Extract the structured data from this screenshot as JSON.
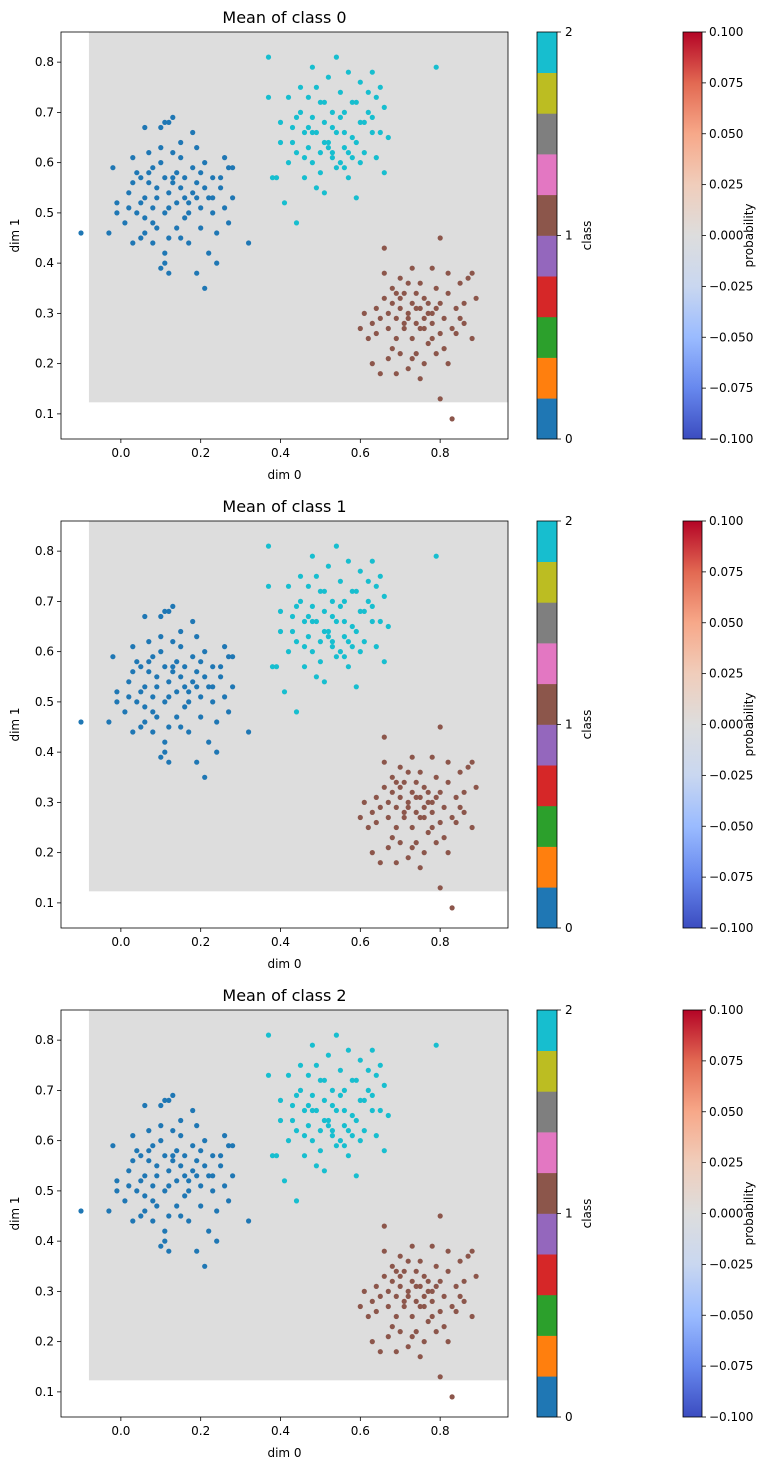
{
  "chart_data": {
    "type": "scatter",
    "panels": [
      {
        "title": "Mean of class 0"
      },
      {
        "title": "Mean of class 1"
      },
      {
        "title": "Mean of class 2"
      }
    ],
    "xlabel": "dim 0",
    "ylabel": "dim 1",
    "xlim": [
      -0.15,
      0.97
    ],
    "ylim": [
      0.05,
      0.86
    ],
    "xticks": [
      0.0,
      0.2,
      0.4,
      0.6,
      0.8
    ],
    "xtick_labels": [
      "0.0",
      "0.2",
      "0.4",
      "0.6",
      "0.8"
    ],
    "yticks": [
      0.1,
      0.2,
      0.3,
      0.4,
      0.5,
      0.6,
      0.7,
      0.8
    ],
    "ytick_labels": [
      "0.1",
      "0.2",
      "0.3",
      "0.4",
      "0.5",
      "0.6",
      "0.7",
      "0.8"
    ],
    "background_region": {
      "x": [
        -0.08,
        0.97
      ],
      "y": [
        0.123,
        0.86
      ],
      "value": 0.0,
      "color": "#dddddd"
    },
    "class_colorbar": {
      "label": "class",
      "ticks": [
        0,
        1,
        2
      ],
      "tick_labels": [
        "0",
        "1",
        "2"
      ],
      "segment_colors": [
        "#1f77b4",
        "#ff7f0e",
        "#2ca02c",
        "#d62728",
        "#9467bd",
        "#8c564b",
        "#e377c2",
        "#7f7f7f",
        "#bcbd22",
        "#17becf"
      ]
    },
    "prob_colorbar": {
      "label": "probability",
      "min": -0.1,
      "max": 0.1,
      "ticks": [
        -0.1,
        -0.075,
        -0.05,
        -0.025,
        0.0,
        0.025,
        0.05,
        0.075,
        0.1
      ],
      "tick_labels": [
        "−0.100",
        "−0.075",
        "−0.050",
        "−0.025",
        "0.000",
        "0.025",
        "0.050",
        "0.075",
        "0.100"
      ],
      "colors": [
        "#3b4cc0",
        "#6788ee",
        "#9abbff",
        "#c9d7f0",
        "#dddddd",
        "#f0cdbb",
        "#f7a889",
        "#e26952",
        "#b40426"
      ]
    },
    "series": [
      {
        "name": "class 0",
        "class": 0,
        "color": "#1f77b4",
        "points": [
          [
            -0.1,
            0.46
          ],
          [
            -0.03,
            0.46
          ],
          [
            -0.02,
            0.59
          ],
          [
            -0.01,
            0.52
          ],
          [
            -0.01,
            0.5
          ],
          [
            0.01,
            0.48
          ],
          [
            0.02,
            0.54
          ],
          [
            0.03,
            0.61
          ],
          [
            0.03,
            0.56
          ],
          [
            0.04,
            0.5
          ],
          [
            0.05,
            0.52
          ],
          [
            0.05,
            0.45
          ],
          [
            0.05,
            0.57
          ],
          [
            0.06,
            0.46
          ],
          [
            0.06,
            0.49
          ],
          [
            0.06,
            0.53
          ],
          [
            0.07,
            0.56
          ],
          [
            0.07,
            0.62
          ],
          [
            0.07,
            0.58
          ],
          [
            0.08,
            0.51
          ],
          [
            0.08,
            0.48
          ],
          [
            0.09,
            0.55
          ],
          [
            0.09,
            0.53
          ],
          [
            0.1,
            0.6
          ],
          [
            0.1,
            0.63
          ],
          [
            0.1,
            0.67
          ],
          [
            0.11,
            0.68
          ],
          [
            0.11,
            0.57
          ],
          [
            0.11,
            0.5
          ],
          [
            0.12,
            0.45
          ],
          [
            0.12,
            0.54
          ],
          [
            0.12,
            0.68
          ],
          [
            0.13,
            0.69
          ],
          [
            0.13,
            0.62
          ],
          [
            0.13,
            0.56
          ],
          [
            0.14,
            0.52
          ],
          [
            0.14,
            0.47
          ],
          [
            0.15,
            0.55
          ],
          [
            0.15,
            0.61
          ],
          [
            0.15,
            0.64
          ],
          [
            0.16,
            0.57
          ],
          [
            0.16,
            0.53
          ],
          [
            0.17,
            0.5
          ],
          [
            0.17,
            0.44
          ],
          [
            0.18,
            0.54
          ],
          [
            0.18,
            0.59
          ],
          [
            0.19,
            0.63
          ],
          [
            0.19,
            0.56
          ],
          [
            0.2,
            0.51
          ],
          [
            0.2,
            0.47
          ],
          [
            0.21,
            0.55
          ],
          [
            0.21,
            0.6
          ],
          [
            0.22,
            0.53
          ],
          [
            0.22,
            0.42
          ],
          [
            0.23,
            0.57
          ],
          [
            0.23,
            0.5
          ],
          [
            0.24,
            0.46
          ],
          [
            0.25,
            0.55
          ],
          [
            0.26,
            0.61
          ],
          [
            0.27,
            0.48
          ],
          [
            0.27,
            0.59
          ],
          [
            0.28,
            0.53
          ],
          [
            0.28,
            0.59
          ],
          [
            0.32,
            0.44
          ],
          [
            0.1,
            0.39
          ],
          [
            0.11,
            0.4
          ],
          [
            0.12,
            0.38
          ],
          [
            0.19,
            0.38
          ],
          [
            0.21,
            0.35
          ],
          [
            0.08,
            0.44
          ],
          [
            0.09,
            0.47
          ],
          [
            0.14,
            0.58
          ],
          [
            0.17,
            0.52
          ],
          [
            0.06,
            0.67
          ],
          [
            0.02,
            0.51
          ],
          [
            0.18,
            0.66
          ],
          [
            0.25,
            0.57
          ],
          [
            0.13,
            0.57
          ],
          [
            0.23,
            0.53
          ],
          [
            0.11,
            0.42
          ],
          [
            0.16,
            0.49
          ],
          [
            0.04,
            0.58
          ],
          [
            0.24,
            0.4
          ],
          [
            0.03,
            0.44
          ],
          [
            0.19,
            0.53
          ],
          [
            0.15,
            0.45
          ],
          [
            0.26,
            0.51
          ],
          [
            0.08,
            0.59
          ],
          [
            0.12,
            0.51
          ],
          [
            0.2,
            0.58
          ]
        ]
      },
      {
        "name": "class 1",
        "class": 1,
        "color": "#8c564b",
        "points": [
          [
            0.63,
            0.2
          ],
          [
            0.64,
            0.31
          ],
          [
            0.65,
            0.18
          ],
          [
            0.65,
            0.29
          ],
          [
            0.66,
            0.43
          ],
          [
            0.66,
            0.38
          ],
          [
            0.67,
            0.27
          ],
          [
            0.67,
            0.21
          ],
          [
            0.68,
            0.35
          ],
          [
            0.68,
            0.32
          ],
          [
            0.69,
            0.25
          ],
          [
            0.69,
            0.29
          ],
          [
            0.7,
            0.37
          ],
          [
            0.7,
            0.22
          ],
          [
            0.7,
            0.31
          ],
          [
            0.71,
            0.27
          ],
          [
            0.71,
            0.34
          ],
          [
            0.72,
            0.19
          ],
          [
            0.72,
            0.29
          ],
          [
            0.73,
            0.25
          ],
          [
            0.73,
            0.32
          ],
          [
            0.73,
            0.39
          ],
          [
            0.74,
            0.28
          ],
          [
            0.74,
            0.22
          ],
          [
            0.75,
            0.36
          ],
          [
            0.75,
            0.31
          ],
          [
            0.75,
            0.17
          ],
          [
            0.76,
            0.27
          ],
          [
            0.76,
            0.33
          ],
          [
            0.77,
            0.24
          ],
          [
            0.77,
            0.3
          ],
          [
            0.78,
            0.39
          ],
          [
            0.78,
            0.28
          ],
          [
            0.79,
            0.35
          ],
          [
            0.79,
            0.22
          ],
          [
            0.8,
            0.32
          ],
          [
            0.8,
            0.26
          ],
          [
            0.8,
            0.45
          ],
          [
            0.81,
            0.29
          ],
          [
            0.82,
            0.34
          ],
          [
            0.82,
            0.2
          ],
          [
            0.83,
            0.27
          ],
          [
            0.84,
            0.31
          ],
          [
            0.85,
            0.36
          ],
          [
            0.86,
            0.28
          ],
          [
            0.87,
            0.37
          ],
          [
            0.88,
            0.25
          ],
          [
            0.89,
            0.33
          ],
          [
            0.8,
            0.13
          ],
          [
            0.83,
            0.09
          ],
          [
            0.6,
            0.27
          ],
          [
            0.61,
            0.3
          ],
          [
            0.62,
            0.25
          ],
          [
            0.64,
            0.26
          ],
          [
            0.69,
            0.18
          ],
          [
            0.72,
            0.3
          ],
          [
            0.74,
            0.31
          ],
          [
            0.76,
            0.29
          ],
          [
            0.78,
            0.3
          ],
          [
            0.71,
            0.28
          ],
          [
            0.75,
            0.27
          ],
          [
            0.68,
            0.23
          ],
          [
            0.73,
            0.21
          ],
          [
            0.77,
            0.32
          ],
          [
            0.7,
            0.33
          ],
          [
            0.79,
            0.31
          ],
          [
            0.81,
            0.23
          ],
          [
            0.84,
            0.26
          ],
          [
            0.86,
            0.32
          ],
          [
            0.66,
            0.33
          ],
          [
            0.72,
            0.36
          ],
          [
            0.78,
            0.25
          ],
          [
            0.74,
            0.34
          ],
          [
            0.67,
            0.3
          ],
          [
            0.82,
            0.38
          ],
          [
            0.88,
            0.38
          ],
          [
            0.63,
            0.28
          ],
          [
            0.76,
            0.2
          ],
          [
            0.85,
            0.29
          ],
          [
            0.69,
            0.34
          ]
        ]
      },
      {
        "name": "class 2",
        "class": 2,
        "color": "#17becf",
        "points": [
          [
            0.37,
            0.73
          ],
          [
            0.37,
            0.81
          ],
          [
            0.39,
            0.57
          ],
          [
            0.4,
            0.64
          ],
          [
            0.4,
            0.68
          ],
          [
            0.41,
            0.52
          ],
          [
            0.42,
            0.6
          ],
          [
            0.43,
            0.67
          ],
          [
            0.44,
            0.48
          ],
          [
            0.44,
            0.62
          ],
          [
            0.45,
            0.7
          ],
          [
            0.45,
            0.75
          ],
          [
            0.46,
            0.57
          ],
          [
            0.46,
            0.66
          ],
          [
            0.47,
            0.73
          ],
          [
            0.47,
            0.63
          ],
          [
            0.48,
            0.69
          ],
          [
            0.48,
            0.6
          ],
          [
            0.49,
            0.75
          ],
          [
            0.49,
            0.66
          ],
          [
            0.5,
            0.72
          ],
          [
            0.5,
            0.62
          ],
          [
            0.51,
            0.54
          ],
          [
            0.51,
            0.68
          ],
          [
            0.52,
            0.64
          ],
          [
            0.52,
            0.77
          ],
          [
            0.53,
            0.61
          ],
          [
            0.53,
            0.7
          ],
          [
            0.54,
            0.81
          ],
          [
            0.54,
            0.66
          ],
          [
            0.55,
            0.6
          ],
          [
            0.55,
            0.74
          ],
          [
            0.56,
            0.63
          ],
          [
            0.56,
            0.7
          ],
          [
            0.57,
            0.57
          ],
          [
            0.57,
            0.78
          ],
          [
            0.58,
            0.65
          ],
          [
            0.58,
            0.61
          ],
          [
            0.59,
            0.72
          ],
          [
            0.59,
            0.53
          ],
          [
            0.6,
            0.68
          ],
          [
            0.6,
            0.76
          ],
          [
            0.61,
            0.62
          ],
          [
            0.62,
            0.7
          ],
          [
            0.63,
            0.66
          ],
          [
            0.63,
            0.78
          ],
          [
            0.64,
            0.73
          ],
          [
            0.65,
            0.66
          ],
          [
            0.66,
            0.71
          ],
          [
            0.67,
            0.65
          ],
          [
            0.66,
            0.58
          ],
          [
            0.64,
            0.61
          ],
          [
            0.79,
            0.79
          ],
          [
            0.38,
            0.57
          ],
          [
            0.42,
            0.73
          ],
          [
            0.48,
            0.66
          ],
          [
            0.53,
            0.62
          ],
          [
            0.56,
            0.66
          ],
          [
            0.51,
            0.72
          ],
          [
            0.47,
            0.67
          ],
          [
            0.55,
            0.69
          ],
          [
            0.59,
            0.64
          ],
          [
            0.62,
            0.74
          ],
          [
            0.44,
            0.69
          ],
          [
            0.5,
            0.58
          ],
          [
            0.57,
            0.62
          ],
          [
            0.61,
            0.68
          ],
          [
            0.49,
            0.55
          ],
          [
            0.54,
            0.59
          ],
          [
            0.58,
            0.72
          ],
          [
            0.52,
            0.63
          ],
          [
            0.46,
            0.61
          ],
          [
            0.6,
            0.6
          ],
          [
            0.43,
            0.64
          ],
          [
            0.65,
            0.75
          ],
          [
            0.48,
            0.79
          ],
          [
            0.53,
            0.67
          ],
          [
            0.56,
            0.59
          ],
          [
            0.63,
            0.69
          ],
          [
            0.51,
            0.64
          ]
        ]
      }
    ]
  }
}
